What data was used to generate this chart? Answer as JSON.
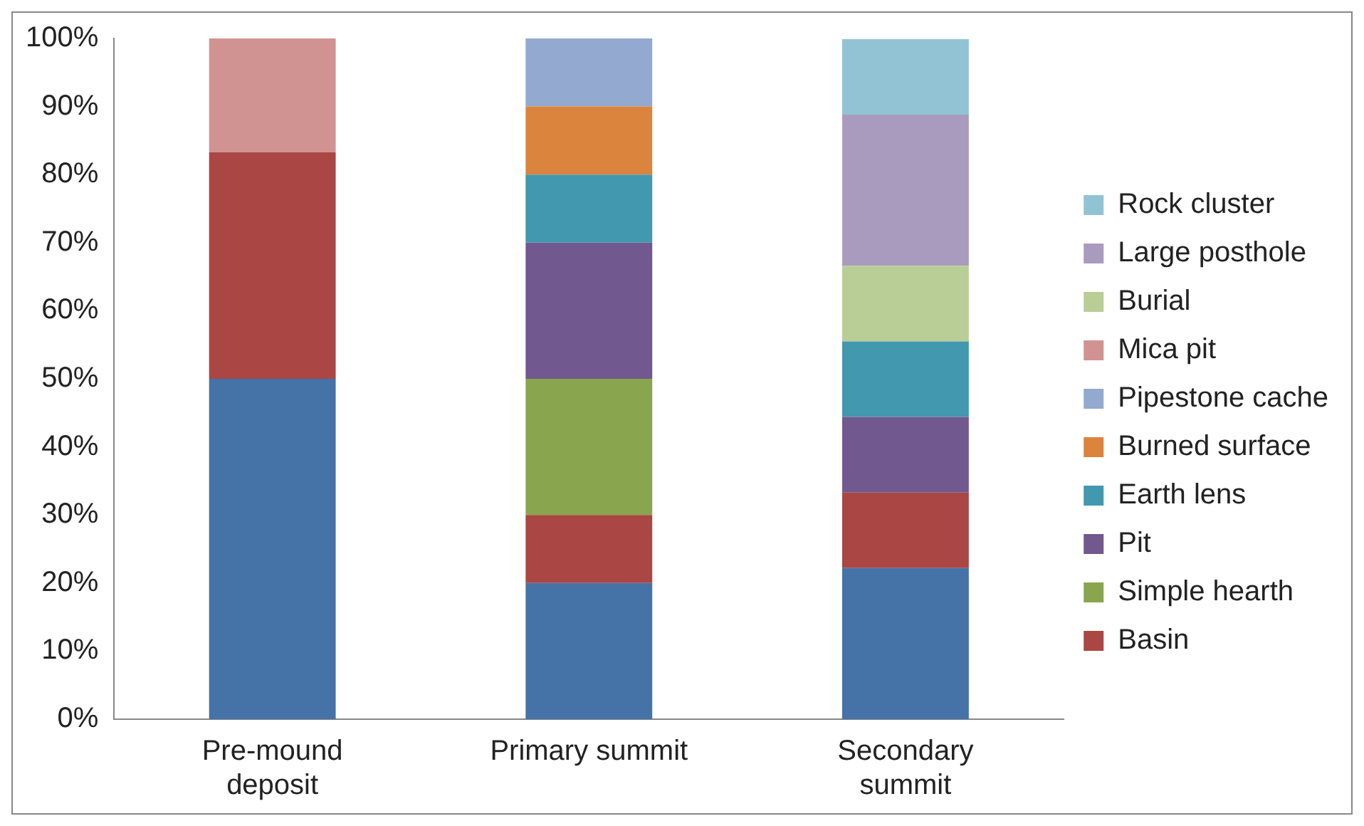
{
  "chart_data": {
    "type": "bar",
    "stacked": true,
    "categories": [
      "Pre-mound deposit",
      "Primary summit",
      "Secondary summit"
    ],
    "ylim": [
      0,
      100
    ],
    "yticks": [
      {
        "value": 0,
        "label": "0%"
      },
      {
        "value": 10,
        "label": "10%"
      },
      {
        "value": 20,
        "label": "20%"
      },
      {
        "value": 30,
        "label": "30%"
      },
      {
        "value": 40,
        "label": "40%"
      },
      {
        "value": 50,
        "label": "50%"
      },
      {
        "value": 60,
        "label": "60%"
      },
      {
        "value": 70,
        "label": "70%"
      },
      {
        "value": 80,
        "label": "80%"
      },
      {
        "value": 90,
        "label": "90%"
      },
      {
        "value": 100,
        "label": "100%"
      }
    ],
    "grid": false,
    "legend": "right",
    "series": [
      {
        "color": "#4572a7",
        "values": [
          50,
          20,
          22.2
        ]
      },
      {
        "name": "Basin",
        "color": "#aa4643",
        "values": [
          33.3,
          10,
          11.1
        ]
      },
      {
        "name": "Simple hearth",
        "color": "#89a54e",
        "values": [
          null,
          20,
          null
        ]
      },
      {
        "name": "Pit",
        "color": "#71588f",
        "values": [
          null,
          20,
          11.1
        ]
      },
      {
        "name": "Earth lens",
        "color": "#4198af",
        "values": [
          null,
          10,
          11.1
        ]
      },
      {
        "name": "Burned surface",
        "color": "#db843d",
        "values": [
          null,
          10,
          null
        ]
      },
      {
        "name": "Pipestone cache",
        "color": "#93a9cf",
        "values": [
          null,
          10,
          null
        ]
      },
      {
        "name": "Mica pit",
        "color": "#d19392",
        "values": [
          16.7,
          null,
          null
        ]
      },
      {
        "name": "Burial",
        "color": "#b9cd96",
        "values": [
          null,
          null,
          11.1
        ]
      },
      {
        "name": "Large posthole",
        "color": "#a99bbd",
        "values": [
          null,
          null,
          22.2
        ]
      },
      {
        "name": "Rock cluster",
        "color": "#92c3d5",
        "values": [
          null,
          null,
          11.1
        ]
      }
    ]
  }
}
